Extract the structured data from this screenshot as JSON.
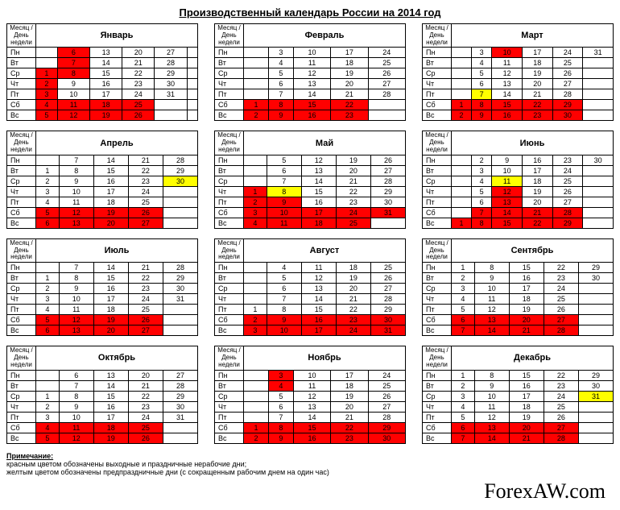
{
  "title": "Производственный календарь России на 2014 год",
  "header_left": "Месяц / День недели",
  "day_labels": [
    "Пн",
    "Вт",
    "Ср",
    "Чт",
    "Пт",
    "Сб",
    "Вс"
  ],
  "colors": {
    "holiday": "#ff0000",
    "preholiday": "#ffff00",
    "border": "#000000"
  },
  "months": [
    {
      "name": "Январь",
      "weeks": 6,
      "grid": [
        [
          "",
          "6",
          "13",
          "20",
          "27",
          ""
        ],
        [
          "",
          "7",
          "14",
          "21",
          "28",
          ""
        ],
        [
          "1",
          "8",
          "15",
          "22",
          "29",
          ""
        ],
        [
          "2",
          "9",
          "16",
          "23",
          "30",
          ""
        ],
        [
          "3",
          "10",
          "17",
          "24",
          "31",
          ""
        ],
        [
          "4",
          "11",
          "18",
          "25",
          "",
          ""
        ],
        [
          "5",
          "12",
          "19",
          "26",
          "",
          ""
        ]
      ],
      "cls": [
        [
          "",
          "r",
          "",
          "",
          "",
          ""
        ],
        [
          "",
          "r",
          "",
          "",
          "",
          ""
        ],
        [
          "r",
          "r",
          "",
          "",
          "",
          ""
        ],
        [
          "r",
          "",
          "",
          "",
          "",
          ""
        ],
        [
          "r",
          "",
          "",
          "",
          "",
          ""
        ],
        [
          "r",
          "r",
          "r",
          "r",
          "",
          ""
        ],
        [
          "r",
          "r",
          "r",
          "r",
          "",
          ""
        ]
      ]
    },
    {
      "name": "Февраль",
      "weeks": 5,
      "grid": [
        [
          "",
          "3",
          "10",
          "17",
          "24"
        ],
        [
          "",
          "4",
          "11",
          "18",
          "25"
        ],
        [
          "",
          "5",
          "12",
          "19",
          "26"
        ],
        [
          "",
          "6",
          "13",
          "20",
          "27"
        ],
        [
          "",
          "7",
          "14",
          "21",
          "28"
        ],
        [
          "1",
          "8",
          "15",
          "22",
          ""
        ],
        [
          "2",
          "9",
          "16",
          "23",
          ""
        ]
      ],
      "cls": [
        [
          "",
          "",
          "",
          "",
          ""
        ],
        [
          "",
          "",
          "",
          "",
          ""
        ],
        [
          "",
          "",
          "",
          "",
          ""
        ],
        [
          "",
          "",
          "",
          "",
          ""
        ],
        [
          "",
          "",
          "",
          "",
          ""
        ],
        [
          "r",
          "r",
          "r",
          "r",
          ""
        ],
        [
          "r",
          "r",
          "r",
          "r",
          ""
        ]
      ]
    },
    {
      "name": "Март",
      "weeks": 6,
      "grid": [
        [
          "",
          "3",
          "10",
          "17",
          "24",
          "31"
        ],
        [
          "",
          "4",
          "11",
          "18",
          "25",
          ""
        ],
        [
          "",
          "5",
          "12",
          "19",
          "26",
          ""
        ],
        [
          "",
          "6",
          "13",
          "20",
          "27",
          ""
        ],
        [
          "",
          "7",
          "14",
          "21",
          "28",
          ""
        ],
        [
          "1",
          "8",
          "15",
          "22",
          "29",
          ""
        ],
        [
          "2",
          "9",
          "16",
          "23",
          "30",
          ""
        ]
      ],
      "cls": [
        [
          "",
          "",
          "r",
          "",
          "",
          ""
        ],
        [
          "",
          "",
          "",
          "",
          "",
          ""
        ],
        [
          "",
          "",
          "",
          "",
          "",
          ""
        ],
        [
          "",
          "",
          "",
          "",
          "",
          ""
        ],
        [
          "",
          "y",
          "",
          "",
          "",
          ""
        ],
        [
          "r",
          "r",
          "r",
          "r",
          "r",
          ""
        ],
        [
          "r",
          "r",
          "r",
          "r",
          "r",
          ""
        ]
      ]
    },
    {
      "name": "Апрель",
      "weeks": 5,
      "grid": [
        [
          "",
          "7",
          "14",
          "21",
          "28"
        ],
        [
          "1",
          "8",
          "15",
          "22",
          "29"
        ],
        [
          "2",
          "9",
          "16",
          "23",
          "30"
        ],
        [
          "3",
          "10",
          "17",
          "24",
          ""
        ],
        [
          "4",
          "11",
          "18",
          "25",
          ""
        ],
        [
          "5",
          "12",
          "19",
          "26",
          ""
        ],
        [
          "6",
          "13",
          "20",
          "27",
          ""
        ]
      ],
      "cls": [
        [
          "",
          "",
          "",
          "",
          ""
        ],
        [
          "",
          "",
          "",
          "",
          ""
        ],
        [
          "",
          "",
          "",
          "",
          "y"
        ],
        [
          "",
          "",
          "",
          "",
          ""
        ],
        [
          "",
          "",
          "",
          "",
          ""
        ],
        [
          "r",
          "r",
          "r",
          "r",
          ""
        ],
        [
          "r",
          "r",
          "r",
          "r",
          ""
        ]
      ]
    },
    {
      "name": "Май",
      "weeks": 5,
      "grid": [
        [
          "",
          "5",
          "12",
          "19",
          "26"
        ],
        [
          "",
          "6",
          "13",
          "20",
          "27"
        ],
        [
          "",
          "7",
          "14",
          "21",
          "28"
        ],
        [
          "1",
          "8",
          "15",
          "22",
          "29"
        ],
        [
          "2",
          "9",
          "16",
          "23",
          "30"
        ],
        [
          "3",
          "10",
          "17",
          "24",
          "31"
        ],
        [
          "4",
          "11",
          "18",
          "25",
          ""
        ]
      ],
      "cls": [
        [
          "",
          "",
          "",
          "",
          ""
        ],
        [
          "",
          "",
          "",
          "",
          ""
        ],
        [
          "",
          "",
          "",
          "",
          ""
        ],
        [
          "r",
          "y",
          "",
          "",
          ""
        ],
        [
          "r",
          "r",
          "",
          "",
          ""
        ],
        [
          "r",
          "r",
          "r",
          "r",
          "r"
        ],
        [
          "r",
          "r",
          "r",
          "r",
          ""
        ]
      ]
    },
    {
      "name": "Июнь",
      "weeks": 6,
      "grid": [
        [
          "",
          "2",
          "9",
          "16",
          "23",
          "30"
        ],
        [
          "",
          "3",
          "10",
          "17",
          "24",
          ""
        ],
        [
          "",
          "4",
          "11",
          "18",
          "25",
          ""
        ],
        [
          "",
          "5",
          "12",
          "19",
          "26",
          ""
        ],
        [
          "",
          "6",
          "13",
          "20",
          "27",
          ""
        ],
        [
          "",
          "7",
          "14",
          "21",
          "28",
          ""
        ],
        [
          "1",
          "8",
          "15",
          "22",
          "29",
          ""
        ]
      ],
      "cls": [
        [
          "",
          "",
          "",
          "",
          "",
          ""
        ],
        [
          "",
          "",
          "",
          "",
          "",
          ""
        ],
        [
          "",
          "",
          "y",
          "",
          "",
          ""
        ],
        [
          "",
          "",
          "r",
          "",
          "",
          ""
        ],
        [
          "",
          "",
          "r",
          "",
          "",
          ""
        ],
        [
          "",
          "r",
          "r",
          "r",
          "r",
          ""
        ],
        [
          "r",
          "r",
          "r",
          "r",
          "r",
          ""
        ]
      ]
    },
    {
      "name": "Июль",
      "weeks": 5,
      "grid": [
        [
          "",
          "7",
          "14",
          "21",
          "28"
        ],
        [
          "1",
          "8",
          "15",
          "22",
          "29"
        ],
        [
          "2",
          "9",
          "16",
          "23",
          "30"
        ],
        [
          "3",
          "10",
          "17",
          "24",
          "31"
        ],
        [
          "4",
          "11",
          "18",
          "25",
          ""
        ],
        [
          "5",
          "12",
          "19",
          "26",
          ""
        ],
        [
          "6",
          "13",
          "20",
          "27",
          ""
        ]
      ],
      "cls": [
        [
          "",
          "",
          "",
          "",
          ""
        ],
        [
          "",
          "",
          "",
          "",
          ""
        ],
        [
          "",
          "",
          "",
          "",
          ""
        ],
        [
          "",
          "",
          "",
          "",
          ""
        ],
        [
          "",
          "",
          "",
          "",
          ""
        ],
        [
          "r",
          "r",
          "r",
          "r",
          ""
        ],
        [
          "r",
          "r",
          "r",
          "r",
          ""
        ]
      ]
    },
    {
      "name": "Август",
      "weeks": 5,
      "grid": [
        [
          "",
          "4",
          "11",
          "18",
          "25"
        ],
        [
          "",
          "5",
          "12",
          "19",
          "26"
        ],
        [
          "",
          "6",
          "13",
          "20",
          "27"
        ],
        [
          "",
          "7",
          "14",
          "21",
          "28"
        ],
        [
          "1",
          "8",
          "15",
          "22",
          "29"
        ],
        [
          "2",
          "9",
          "16",
          "23",
          "30"
        ],
        [
          "3",
          "10",
          "17",
          "24",
          "31"
        ]
      ],
      "cls": [
        [
          "",
          "",
          "",
          "",
          ""
        ],
        [
          "",
          "",
          "",
          "",
          ""
        ],
        [
          "",
          "",
          "",
          "",
          ""
        ],
        [
          "",
          "",
          "",
          "",
          ""
        ],
        [
          "",
          "",
          "",
          "",
          ""
        ],
        [
          "r",
          "r",
          "r",
          "r",
          "r"
        ],
        [
          "r",
          "r",
          "r",
          "r",
          "r"
        ]
      ]
    },
    {
      "name": "Сентябрь",
      "weeks": 5,
      "grid": [
        [
          "1",
          "8",
          "15",
          "22",
          "29"
        ],
        [
          "2",
          "9",
          "16",
          "23",
          "30"
        ],
        [
          "3",
          "10",
          "17",
          "24",
          ""
        ],
        [
          "4",
          "11",
          "18",
          "25",
          ""
        ],
        [
          "5",
          "12",
          "19",
          "26",
          ""
        ],
        [
          "6",
          "13",
          "20",
          "27",
          ""
        ],
        [
          "7",
          "14",
          "21",
          "28",
          ""
        ]
      ],
      "cls": [
        [
          "",
          "",
          "",
          "",
          ""
        ],
        [
          "",
          "",
          "",
          "",
          ""
        ],
        [
          "",
          "",
          "",
          "",
          ""
        ],
        [
          "",
          "",
          "",
          "",
          ""
        ],
        [
          "",
          "",
          "",
          "",
          ""
        ],
        [
          "r",
          "r",
          "r",
          "r",
          ""
        ],
        [
          "r",
          "r",
          "r",
          "r",
          ""
        ]
      ]
    },
    {
      "name": "Октябрь",
      "weeks": 5,
      "grid": [
        [
          "",
          "6",
          "13",
          "20",
          "27"
        ],
        [
          "",
          "7",
          "14",
          "21",
          "28"
        ],
        [
          "1",
          "8",
          "15",
          "22",
          "29"
        ],
        [
          "2",
          "9",
          "16",
          "23",
          "30"
        ],
        [
          "3",
          "10",
          "17",
          "24",
          "31"
        ],
        [
          "4",
          "11",
          "18",
          "25",
          ""
        ],
        [
          "5",
          "12",
          "19",
          "26",
          ""
        ]
      ],
      "cls": [
        [
          "",
          "",
          "",
          "",
          ""
        ],
        [
          "",
          "",
          "",
          "",
          ""
        ],
        [
          "",
          "",
          "",
          "",
          ""
        ],
        [
          "",
          "",
          "",
          "",
          ""
        ],
        [
          "",
          "",
          "",
          "",
          ""
        ],
        [
          "r",
          "r",
          "r",
          "r",
          ""
        ],
        [
          "r",
          "r",
          "r",
          "r",
          ""
        ]
      ]
    },
    {
      "name": "Ноябрь",
      "weeks": 5,
      "grid": [
        [
          "",
          "3",
          "10",
          "17",
          "24"
        ],
        [
          "",
          "4",
          "11",
          "18",
          "25"
        ],
        [
          "",
          "5",
          "12",
          "19",
          "26"
        ],
        [
          "",
          "6",
          "13",
          "20",
          "27"
        ],
        [
          "",
          "7",
          "14",
          "21",
          "28"
        ],
        [
          "1",
          "8",
          "15",
          "22",
          "29"
        ],
        [
          "2",
          "9",
          "16",
          "23",
          "30"
        ]
      ],
      "cls": [
        [
          "",
          "r",
          "",
          "",
          ""
        ],
        [
          "",
          "r",
          "",
          "",
          ""
        ],
        [
          "",
          "",
          "",
          "",
          ""
        ],
        [
          "",
          "",
          "",
          "",
          ""
        ],
        [
          "",
          "",
          "",
          "",
          ""
        ],
        [
          "r",
          "r",
          "r",
          "r",
          "r"
        ],
        [
          "r",
          "r",
          "r",
          "r",
          "r"
        ]
      ]
    },
    {
      "name": "Декабрь",
      "weeks": 5,
      "grid": [
        [
          "1",
          "8",
          "15",
          "22",
          "29"
        ],
        [
          "2",
          "9",
          "16",
          "23",
          "30"
        ],
        [
          "3",
          "10",
          "17",
          "24",
          "31"
        ],
        [
          "4",
          "11",
          "18",
          "25",
          ""
        ],
        [
          "5",
          "12",
          "19",
          "26",
          ""
        ],
        [
          "6",
          "13",
          "20",
          "27",
          ""
        ],
        [
          "7",
          "14",
          "21",
          "28",
          ""
        ]
      ],
      "cls": [
        [
          "",
          "",
          "",
          "",
          ""
        ],
        [
          "",
          "",
          "",
          "",
          ""
        ],
        [
          "",
          "",
          "",
          "",
          "y"
        ],
        [
          "",
          "",
          "",
          "",
          ""
        ],
        [
          "",
          "",
          "",
          "",
          ""
        ],
        [
          "r",
          "r",
          "r",
          "r",
          ""
        ],
        [
          "r",
          "r",
          "r",
          "r",
          ""
        ]
      ]
    }
  ],
  "notes": {
    "title": "Примечание:",
    "line1": "красным цветом обозначены выходные и праздничные нерабочие дни;",
    "line2": "желтым цветом обозначены предпраздничные дни (с сокращенным рабочим днем на один час)"
  },
  "brand": "ForexAW.com"
}
